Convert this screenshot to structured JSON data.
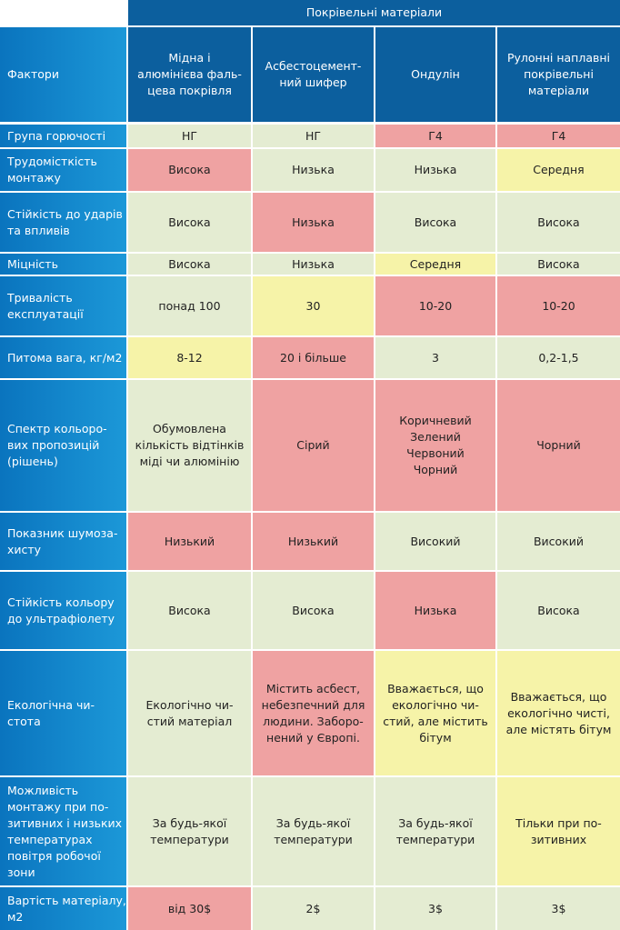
{
  "table": {
    "group_header": "Покрівельні матеріали",
    "factor_header": "Фактори",
    "columns": [
      "Мідна і\nалюмінієва фаль-\nцева покрівля",
      "Асбестоцемент-\nний шифер",
      "Ондулін",
      "Рулонні наплавні\nпокрівельні\nматеріали"
    ],
    "rows": [
      {
        "factor": "Група горючості",
        "cells": [
          {
            "text": "НГ",
            "color": "#e4ecd2"
          },
          {
            "text": "НГ",
            "color": "#e4ecd2"
          },
          {
            "text": "Г4",
            "color": "#efa2a2"
          },
          {
            "text": "Г4",
            "color": "#efa2a2"
          }
        ]
      },
      {
        "factor": "Трудомісткість\nмонтажу",
        "cells": [
          {
            "text": "Висока",
            "color": "#efa2a2"
          },
          {
            "text": "Низька",
            "color": "#e4ecd2"
          },
          {
            "text": "Низька",
            "color": "#e4ecd2"
          },
          {
            "text": "Середня",
            "color": "#f6f3a8"
          }
        ]
      },
      {
        "factor": "Стійкість до ударів\nта впливів",
        "cells": [
          {
            "text": "Висока",
            "color": "#e4ecd2"
          },
          {
            "text": "Низька",
            "color": "#efa2a2"
          },
          {
            "text": "Висока",
            "color": "#e4ecd2"
          },
          {
            "text": "Висока",
            "color": "#e4ecd2"
          }
        ]
      },
      {
        "factor": "Міцність",
        "cells": [
          {
            "text": "Висока",
            "color": "#e4ecd2"
          },
          {
            "text": "Низька",
            "color": "#e4ecd2"
          },
          {
            "text": "Середня",
            "color": "#f6f3a8"
          },
          {
            "text": "Висока",
            "color": "#e4ecd2"
          }
        ]
      },
      {
        "factor": "Тривалість\nексплуатації",
        "cells": [
          {
            "text": "понад 100",
            "color": "#e4ecd2"
          },
          {
            "text": "30",
            "color": "#f6f3a8"
          },
          {
            "text": "10-20",
            "color": "#efa2a2"
          },
          {
            "text": "10-20",
            "color": "#efa2a2"
          }
        ]
      },
      {
        "factor": "Питома вага, кг/м2",
        "cells": [
          {
            "text": "8-12",
            "color": "#f6f3a8"
          },
          {
            "text": "20 і більше",
            "color": "#efa2a2"
          },
          {
            "text": "3",
            "color": "#e4ecd2"
          },
          {
            "text": "0,2-1,5",
            "color": "#e4ecd2"
          }
        ]
      },
      {
        "factor": "Спектр кольоро-\nвих пропозицій\n(рішень)",
        "cells": [
          {
            "text": "Обумовлена\nкількість відтінків\nміді чи алюмінію",
            "color": "#e4ecd2"
          },
          {
            "text": "Сірий",
            "color": "#efa2a2"
          },
          {
            "text": "Коричневий\nЗелений\nЧервоний\nЧорний",
            "color": "#efa2a2"
          },
          {
            "text": "Чорний",
            "color": "#efa2a2"
          }
        ]
      },
      {
        "factor": "Показник шумоза-\nхисту",
        "cells": [
          {
            "text": "Низький",
            "color": "#efa2a2"
          },
          {
            "text": "Низький",
            "color": "#efa2a2"
          },
          {
            "text": "Високий",
            "color": "#e4ecd2"
          },
          {
            "text": "Високий",
            "color": "#e4ecd2"
          }
        ]
      },
      {
        "factor": "Стійкість кольору\nдо ультрафіолету",
        "cells": [
          {
            "text": "Висока",
            "color": "#e4ecd2"
          },
          {
            "text": "Висока",
            "color": "#e4ecd2"
          },
          {
            "text": "Низька",
            "color": "#efa2a2"
          },
          {
            "text": "Висока",
            "color": "#e4ecd2"
          }
        ]
      },
      {
        "factor": "Екологічна чи-\nстота",
        "cells": [
          {
            "text": "Екологічно чи-\nстий матеріал",
            "color": "#e4ecd2"
          },
          {
            "text": "Містить асбест,\nнебезпечний для\nлюдини. Заборо-\nнений у Європі.",
            "color": "#efa2a2"
          },
          {
            "text": "Вважається, що\nекологічно чи-\nстий, але містить\nбітум",
            "color": "#f6f3a8"
          },
          {
            "text": "Вважається, що\nекологічно чисті,\nале містять бітум",
            "color": "#f6f3a8"
          }
        ]
      },
      {
        "factor": "Можливість\nмонтажу при по-\nзитивних і низьких\nтемпературах\nповітря робочої\nзони",
        "cells": [
          {
            "text": "За будь-якої\nтемператури",
            "color": "#e4ecd2"
          },
          {
            "text": "За будь-якої\nтемператури",
            "color": "#e4ecd2"
          },
          {
            "text": "За будь-якої\nтемператури",
            "color": "#e4ecd2"
          },
          {
            "text": "Тільки при по-\nзитивних",
            "color": "#f6f3a8"
          }
        ]
      },
      {
        "factor": "Вартість матеріалу,\nм2",
        "cells": [
          {
            "text": "від 30$",
            "color": "#efa2a2"
          },
          {
            "text": "2$",
            "color": "#e4ecd2"
          },
          {
            "text": "3$",
            "color": "#e4ecd2"
          },
          {
            "text": "3$",
            "color": "#e4ecd2"
          }
        ]
      }
    ]
  }
}
